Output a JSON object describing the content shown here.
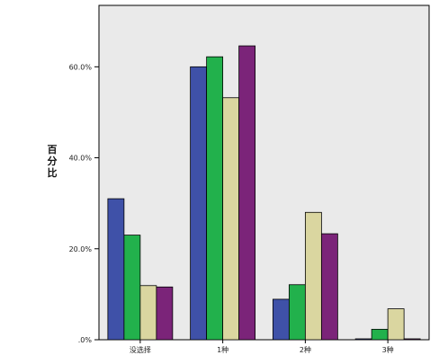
{
  "chart_data": {
    "type": "bar",
    "ylabel": "百分比",
    "y_tick_labels": [
      ".0%",
      "20.0%",
      "40.0%",
      "60.0%"
    ],
    "y_ticks": [
      0,
      20,
      40,
      60
    ],
    "ylim": [
      0,
      73.5
    ],
    "grid": false,
    "legend": "none",
    "categories": [
      "没选择",
      "1种",
      "2种",
      "3种"
    ],
    "series": [
      {
        "color": "#3f51a8",
        "values": [
          31.0,
          60.0,
          8.9,
          0.2
        ]
      },
      {
        "color": "#22b14c",
        "values": [
          23.0,
          62.2,
          12.1,
          2.3
        ]
      },
      {
        "color": "#dad6a0",
        "values": [
          11.9,
          53.2,
          28.0,
          6.8
        ]
      },
      {
        "color": "#7b2479",
        "values": [
          11.6,
          64.6,
          23.3,
          0.2
        ]
      }
    ]
  },
  "colors": {
    "plot_background": "#eaeaea",
    "axis": "#000000"
  }
}
